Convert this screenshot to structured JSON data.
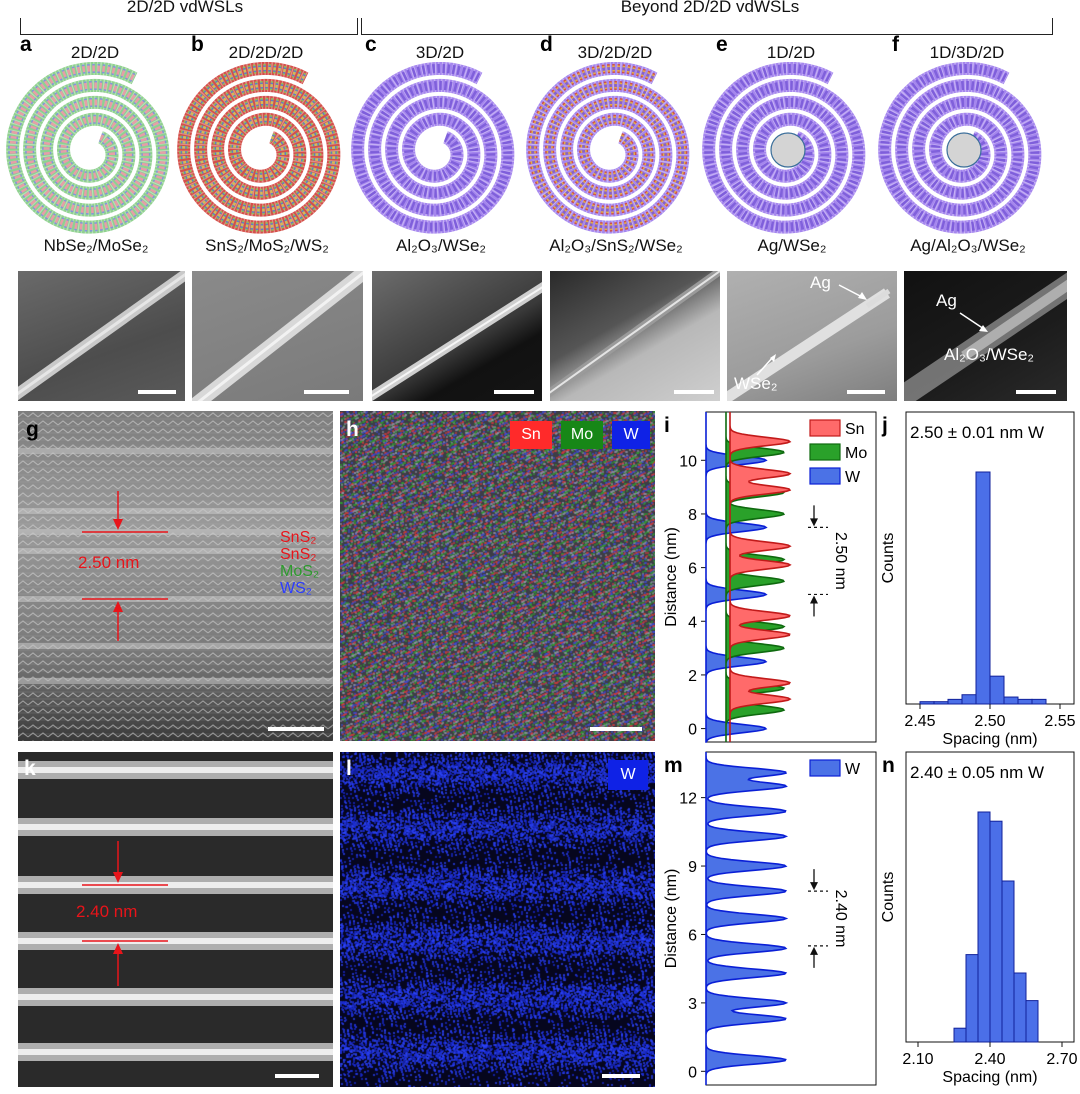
{
  "groups": {
    "left": "2D/2D vdWSLs",
    "right": "Beyond 2D/2D vdWSLs"
  },
  "top_panels": [
    {
      "letter": "a",
      "type": "2D/2D",
      "material": "NbSe₂/MoSe₂"
    },
    {
      "letter": "b",
      "type": "2D/2D/2D",
      "material": "SnS₂/MoS₂/WS₂"
    },
    {
      "letter": "c",
      "type": "3D/2D",
      "material": "Al₂O₃/WSe₂"
    },
    {
      "letter": "d",
      "type": "3D/2D/2D",
      "material": "Al₂O₃/SnS₂/WSe₂"
    },
    {
      "letter": "e",
      "type": "1D/2D",
      "material": "Ag/WSe₂"
    },
    {
      "letter": "f",
      "type": "1D/3D/2D",
      "material": "Ag/Al₂O₃/WSe₂"
    }
  ],
  "sem_labels": {
    "e_ag": "Ag",
    "e_wse2": "WSe₂",
    "f_ag": "Ag",
    "f_mat": "Al₂O₃/WSe₂"
  },
  "panel_g": {
    "letter": "g",
    "spacing": "2.50 nm",
    "layers": [
      "SnS₂",
      "SnS₂",
      "MoS₂",
      "WS₂"
    ]
  },
  "panel_h": {
    "letter": "h",
    "legend": [
      "Sn",
      "Mo",
      "W"
    ]
  },
  "panel_k": {
    "letter": "k",
    "spacing": "2.40 nm"
  },
  "panel_l": {
    "letter": "l",
    "legend": "W"
  },
  "colors": {
    "sn": "#ff5e5e",
    "mo": "#1f9a1f",
    "w": "#1a2fff",
    "w_fill": "#4d73e8",
    "red_annot": "#e8141a"
  },
  "chart_data": [
    {
      "id": "i",
      "type": "area",
      "title": "",
      "xlabel": "",
      "ylabel": "Distance (nm)",
      "ylim": [
        -0.5,
        11.8
      ],
      "yticks": [
        0,
        2,
        4,
        6,
        8,
        10
      ],
      "series": [
        {
          "name": "Sn",
          "peaks_at_nm": [
            1.1,
            1.7,
            3.5,
            4.2,
            6.1,
            6.8,
            8.9,
            9.5,
            10.7
          ]
        },
        {
          "name": "Mo",
          "peaks_at_nm": [
            0.7,
            1.5,
            3.0,
            3.8,
            5.5,
            6.3,
            8.0,
            8.8,
            10.3
          ]
        },
        {
          "name": "W",
          "peaks_at_nm": [
            0.0,
            2.5,
            5.0,
            7.5,
            10.0
          ]
        }
      ],
      "legend": [
        "Sn",
        "Mo",
        "W"
      ],
      "annotation": "2.50 nm"
    },
    {
      "id": "j",
      "type": "bar",
      "title": "2.50 ± 0.01 nm W",
      "xlabel": "Spacing (nm)",
      "ylabel": "Counts",
      "xlim": [
        2.44,
        2.56
      ],
      "xticks": [
        "2.45",
        "2.50",
        "2.55"
      ],
      "categories": [
        2.455,
        2.465,
        2.475,
        2.485,
        2.495,
        2.505,
        2.515,
        2.525,
        2.535
      ],
      "values": [
        1,
        1,
        2,
        4,
        100,
        12,
        3,
        2,
        2
      ]
    },
    {
      "id": "m",
      "type": "area",
      "title": "",
      "xlabel": "",
      "ylabel": "Distance (nm)",
      "ylim": [
        -0.6,
        14.0
      ],
      "yticks": [
        0,
        3,
        6,
        9,
        12
      ],
      "series": [
        {
          "name": "W",
          "peaks_at_nm": [
            0.5,
            2.3,
            3.0,
            4.3,
            5.4,
            6.7,
            7.9,
            9.0,
            10.3,
            11.4,
            12.5,
            13.1
          ]
        }
      ],
      "legend": [
        "W"
      ],
      "annotation": "2.40 nm"
    },
    {
      "id": "n",
      "type": "bar",
      "title": "2.40 ± 0.05 nm W",
      "xlabel": "Spacing (nm)",
      "ylabel": "Counts",
      "xlim": [
        2.05,
        2.75
      ],
      "xticks": [
        "2.10",
        "2.40",
        "2.70"
      ],
      "categories": [
        2.275,
        2.325,
        2.375,
        2.425,
        2.475,
        2.525,
        2.575
      ],
      "values": [
        6,
        38,
        100,
        96,
        70,
        30,
        18
      ]
    }
  ]
}
